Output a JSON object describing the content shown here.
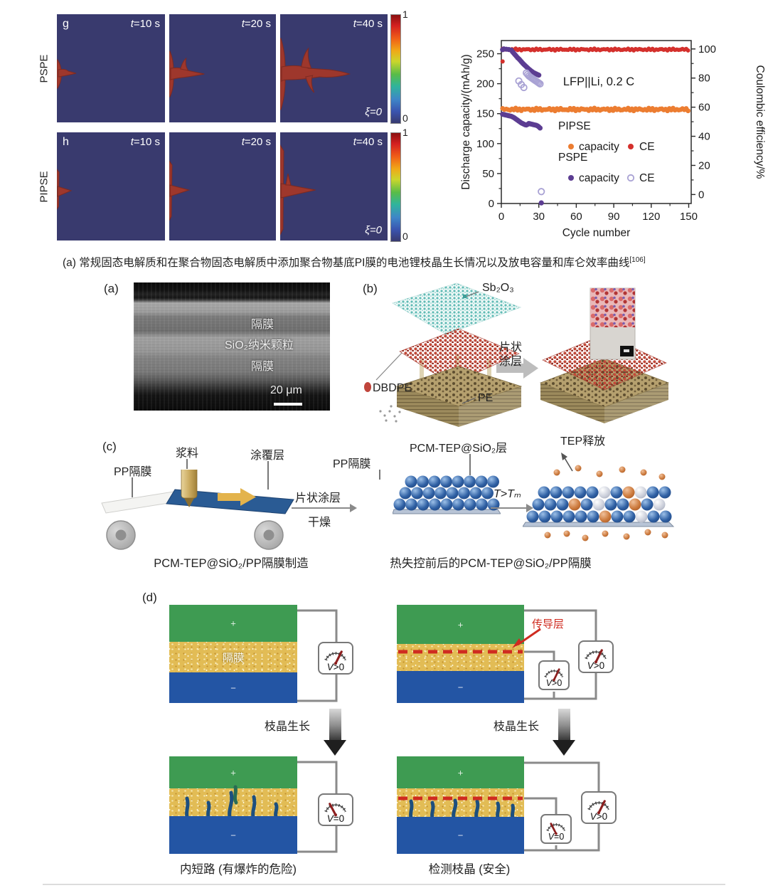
{
  "colors": {
    "heatmap_bg": "#393a6e",
    "dendrite": "#9e372c",
    "pipse_capacity": "#ec7d31",
    "pipse_ce": "#d4302c",
    "pspe_capacity": "#5c3d92",
    "pspe_ce_open": "#a9a2d4",
    "electrode_green": "#3e9b52",
    "separator_yellow": "#e2bc55",
    "electrode_blue": "#2355a4",
    "conductive_red": "#cf2b20",
    "sphere_blue": "#2e5fa3",
    "sphere_orange": "#cc7a3d",
    "teal_particles": "#6fc3bd",
    "red_particles": "#c0453c",
    "pe_tan": "#b3a069"
  },
  "simulation": {
    "colorbar_top": "1",
    "colorbar_bottom": "0",
    "rows": [
      {
        "letter": "g",
        "material": "PSPE",
        "times": [
          "t=10 s",
          "t=20 s",
          "t=40 s"
        ],
        "xi": "ξ=0"
      },
      {
        "letter": "h",
        "material": "PIPSE",
        "times": [
          "t=10 s",
          "t=20 s",
          "t=40 s"
        ],
        "xi": "ξ=0"
      }
    ]
  },
  "chart_data": {
    "type": "scatter",
    "xlabel": "Cycle number",
    "ylabel_left": "Discharge capacity/(mAh/g)",
    "ylabel_right": "Coulombic efficiency/%",
    "annotation": {
      "text": "LFP||Li, 0.2 C",
      "x": 78,
      "y_left": 197
    },
    "x_range": [
      0,
      152
    ],
    "left_range": [
      0,
      272
    ],
    "x_ticks": [
      0,
      30,
      60,
      90,
      120,
      150
    ],
    "left_ticks": [
      0,
      50,
      100,
      150,
      200,
      250
    ],
    "right_ticks": [
      0,
      20,
      40,
      60,
      80,
      100
    ],
    "x_minor_step": 15,
    "left_minor_step": 25,
    "right_minor_step": 10,
    "right_axis_map": {
      "offset": 15,
      "scale": 2.43
    },
    "series": [
      {
        "name": "PIPSE CE",
        "axis": "right",
        "style": "filled",
        "color": "#d4302c",
        "r": 3.0,
        "band": {
          "x0": 1,
          "x1": 150,
          "y": 99.6,
          "spread": 0.45
        },
        "points": [
          [
            1,
            91.4
          ]
        ]
      },
      {
        "name": "PIPSE capacity",
        "axis": "left",
        "style": "filled",
        "color": "#ec7d31",
        "r": 3.4,
        "band": {
          "x0": 1,
          "x1": 150,
          "y": 157,
          "spread": 1.6
        }
      },
      {
        "name": "PSPE CE",
        "axis": "right",
        "style": "filled",
        "color": "#5c3d92",
        "r": 3.6,
        "points": [
          [
            1,
            99.5
          ],
          [
            2,
            100
          ],
          [
            4,
            99.8
          ],
          [
            6,
            99.6
          ],
          [
            8,
            99.2
          ],
          [
            9,
            98
          ],
          [
            10,
            97
          ],
          [
            11,
            96
          ],
          [
            12,
            95
          ],
          [
            13,
            94
          ],
          [
            14,
            93.2
          ],
          [
            15,
            92.3
          ],
          [
            16,
            91.3
          ],
          [
            17,
            90.3
          ],
          [
            18,
            89.4
          ],
          [
            19,
            88.6
          ],
          [
            20,
            87.8
          ],
          [
            21,
            87
          ],
          [
            22,
            86.2
          ],
          [
            23,
            85.5
          ],
          [
            24,
            84.8
          ],
          [
            25,
            84.2
          ],
          [
            26,
            83.6
          ],
          [
            27,
            83.2
          ],
          [
            28,
            82.8
          ],
          [
            29,
            82.4
          ],
          [
            30,
            82
          ]
        ]
      },
      {
        "name": "PSPE CE (open)",
        "axis": "right",
        "style": "open",
        "color": "#a9a2d4",
        "r": 4.2,
        "points": [
          [
            14,
            78
          ],
          [
            16,
            75.5
          ],
          [
            18,
            73.5
          ],
          [
            20,
            83.5
          ],
          [
            21,
            82.5
          ],
          [
            22,
            81.5
          ],
          [
            23,
            80.8
          ],
          [
            24,
            80.2
          ],
          [
            25,
            79.6
          ],
          [
            26,
            79
          ],
          [
            27,
            78.4
          ],
          [
            28,
            77.8
          ],
          [
            29,
            77.2
          ],
          [
            30,
            76.6
          ],
          [
            31,
            76
          ],
          [
            32,
            2
          ]
        ]
      },
      {
        "name": "PSPE capacity",
        "axis": "left",
        "style": "filled",
        "color": "#5c3d92",
        "r": 3.6,
        "points": [
          [
            1,
            149
          ],
          [
            2,
            148.5
          ],
          [
            3,
            148
          ],
          [
            4,
            147.5
          ],
          [
            5,
            147
          ],
          [
            6,
            146.5
          ],
          [
            7,
            146
          ],
          [
            8,
            145.5
          ],
          [
            9,
            144.5
          ],
          [
            10,
            143.5
          ],
          [
            11,
            142
          ],
          [
            12,
            140.5
          ],
          [
            13,
            139
          ],
          [
            14,
            137.5
          ],
          [
            15,
            136
          ],
          [
            16,
            134.5
          ],
          [
            17,
            133.5
          ],
          [
            18,
            132.5
          ],
          [
            19,
            131.5
          ],
          [
            20,
            131
          ],
          [
            21,
            132
          ],
          [
            22,
            133.5
          ],
          [
            23,
            133
          ],
          [
            24,
            132.5
          ],
          [
            25,
            132
          ],
          [
            26,
            131.5
          ],
          [
            27,
            131
          ],
          [
            28,
            130.5
          ],
          [
            29,
            129.5
          ],
          [
            30,
            128
          ],
          [
            31,
            126
          ],
          [
            32,
            1
          ]
        ]
      }
    ],
    "legend": {
      "groups": [
        {
          "label": "PIPSE",
          "items": [
            {
              "label": "capacity",
              "color": "#ec7d31",
              "style": "filled"
            },
            {
              "label": "CE",
              "color": "#d4302c",
              "style": "filled"
            }
          ]
        },
        {
          "label": "PSPE",
          "items": [
            {
              "label": "capacity",
              "color": "#5c3d92",
              "style": "filled"
            },
            {
              "label": "CE",
              "color": "#a9a2d4",
              "style": "open"
            }
          ]
        }
      ]
    }
  },
  "caption_a": {
    "text": "(a) 常规固态电解质和在聚合物固态电解质中添加聚合物基底PI膜的电池锂枝晶生长情况以及放电容量和库仑效率曲线",
    "sup": "[106]"
  },
  "panel_a": {
    "label": "(a)",
    "layer_top": "隔膜",
    "layer_mid": "SiO₂纳米颗粒",
    "layer_bottom": "隔膜",
    "scalebar": "20 μm"
  },
  "panel_b": {
    "label": "(b)",
    "sb2o3": "Sb₂O₃",
    "dbdpe": "DBDPE",
    "pe": "PE",
    "arrow_line1": "片状",
    "arrow_line2": "涂层"
  },
  "panel_c": {
    "label": "(c)",
    "slurry": "浆料",
    "coating": "涂覆层",
    "pp_sep": "PP隔膜",
    "step_line1": "片状涂层",
    "step_line2": "干燥",
    "pp_sep2": "PP隔膜",
    "pcm_layer": "PCM-TEP@SiO₂层",
    "temp_cond": "T>Tₘ",
    "tep_release": "TEP释放",
    "caption_left": "PCM-TEP@SiO₂/PP隔膜制造",
    "caption_right": "热失控前后的PCM-TEP@SiO₂/PP隔膜"
  },
  "panel_d": {
    "label": "(d)",
    "separator": "隔膜",
    "conductive_layer": "传导层",
    "dendrite_growth": "枝晶生长",
    "v_positive": "V>0",
    "v_zero": "V=0",
    "plus": "+",
    "minus": "−",
    "caption_left": "内短路 (有爆炸的危险)",
    "caption_right": "检测枝晶 (安全)"
  }
}
